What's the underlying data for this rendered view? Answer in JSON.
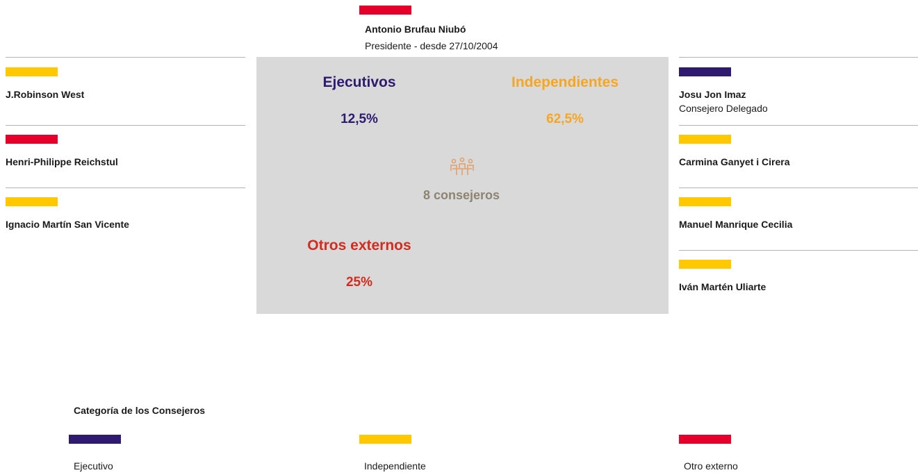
{
  "president": {
    "name": "Antonio Brufau Niubó",
    "role": "Presidente - desde 27/10/2004",
    "color": "#e4002b"
  },
  "left_members": [
    {
      "name": "J.Robinson West",
      "color": "#ffc800"
    },
    {
      "name": "Henri-Philippe Reichstul",
      "color": "#e4002b"
    },
    {
      "name": "Ignacio Martín San Vicente",
      "color": "#ffc800"
    }
  ],
  "right_members": [
    {
      "name": "Josu Jon Imaz",
      "role": "Consejero Delegado",
      "color": "#2e1a6e"
    },
    {
      "name": "Carmina Ganyet i Cirera",
      "color": "#ffc800"
    },
    {
      "name": "Manuel Manrique Cecilia",
      "color": "#ffc800"
    },
    {
      "name": "Iván Martén Uliarte",
      "color": "#ffc800"
    }
  ],
  "summary": {
    "executives": {
      "label": "Ejecutivos",
      "value": "12,5%",
      "color": "#2e1a6e"
    },
    "independents": {
      "label": "Independientes",
      "value": "62,5%",
      "color": "#f5a623"
    },
    "others": {
      "label": "Otros externos",
      "value": "25%",
      "color": "#d52b1e"
    },
    "total": "8 consejeros"
  },
  "legend": {
    "title": "Categoría de los Consejeros",
    "items": [
      {
        "label": "Ejecutivo",
        "color": "#2e1a6e"
      },
      {
        "label": "Independiente",
        "color": "#ffc800"
      },
      {
        "label": "Otro externo",
        "color": "#e4002b"
      }
    ]
  }
}
